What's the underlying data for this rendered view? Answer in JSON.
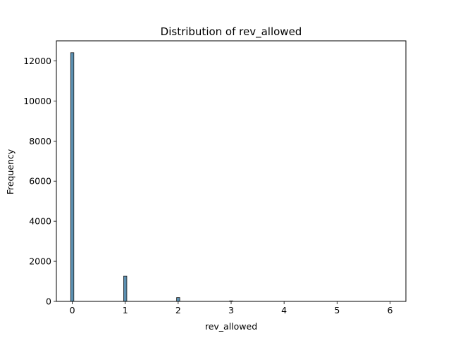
{
  "chart_data": {
    "type": "bar",
    "title": "Distribution of rev_allowed",
    "xlabel": "rev_allowed",
    "ylabel": "Frequency",
    "xlim": [
      -0.3,
      6.3
    ],
    "ylim": [
      0,
      13000
    ],
    "x_ticks": [
      0,
      1,
      2,
      3,
      4,
      5,
      6
    ],
    "y_ticks": [
      0,
      2000,
      4000,
      6000,
      8000,
      10000,
      12000
    ],
    "bar_width": 0.06,
    "x": [
      0,
      1,
      2,
      3
    ],
    "values": [
      12410,
      1260,
      190,
      25
    ],
    "grid": false,
    "legend": "none",
    "bar_color": "#5b8fb0",
    "edge_color": "#1f1f1f"
  }
}
